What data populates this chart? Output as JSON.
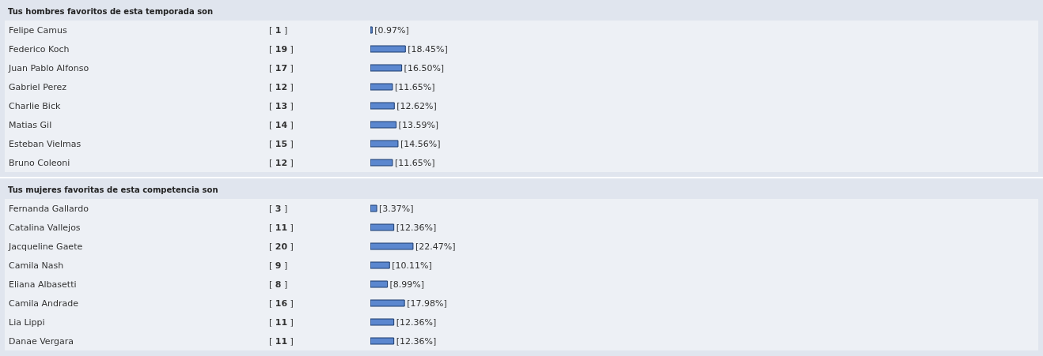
{
  "chart_data": [
    {
      "type": "bar",
      "orientation": "horizontal",
      "title": "Tus hombres favoritos de esta temporada son",
      "categories": [
        "Felipe Camus",
        "Federico Koch",
        "Juan Pablo Alfonso",
        "Gabriel Perez",
        "Charlie Bick",
        "Matias Gil",
        "Esteban Vielmas",
        "Bruno Coleoni"
      ],
      "values": [
        0.97,
        18.45,
        16.5,
        11.65,
        12.62,
        13.59,
        14.56,
        11.65
      ],
      "value_labels": [
        "[0.97%]",
        "[18.45%]",
        "[16.50%]",
        "[11.65%]",
        "[12.62%]",
        "[13.59%]",
        "[14.56%]",
        "[11.65%]"
      ],
      "color": "#5b87cf",
      "tick_labels": "y",
      "annotations": [
        "[ 1 ]",
        "[ 19 ]",
        "[ 17 ]",
        "[ 12 ]",
        "[ 13 ]",
        "[ 14 ]",
        "[ 15 ]",
        "[ 12 ]"
      ]
    },
    {
      "type": "bar",
      "orientation": "horizontal",
      "title": "Tus mujeres favoritas de esta competencia son",
      "categories": [
        "Fernanda Gallardo",
        "Catalina Vallejos",
        "Jacqueline Gaete",
        "Camila Nash",
        "Eliana Albasetti",
        "Camila Andrade",
        "Lia Lippi",
        "Danae Vergara"
      ],
      "values": [
        3.37,
        12.36,
        22.47,
        10.11,
        8.99,
        17.98,
        12.36,
        12.36
      ],
      "value_labels": [
        "[3.37%]",
        "[12.36%]",
        "[22.47%]",
        "[10.11%]",
        "[8.99%]",
        "[17.98%]",
        "[12.36%]",
        "[12.36%]"
      ],
      "color": "#5b87cf",
      "tick_labels": "y",
      "annotations": [
        "[ 3 ]",
        "[ 11 ]",
        "[ 20 ]",
        "[ 9 ]",
        "[ 8 ]",
        "[ 16 ]",
        "[ 11 ]",
        "[ 11 ]"
      ]
    }
  ]
}
